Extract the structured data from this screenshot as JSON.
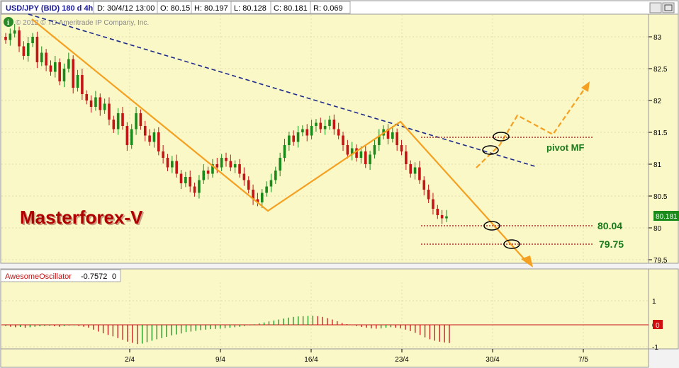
{
  "header": {
    "symbol": "USD/JPY (BID) 180 d 4h",
    "date": "D: 30/4/12 13:00",
    "open": "O: 80.15",
    "high": "H: 80.197",
    "low": "L: 80.128",
    "close": "C: 80.181",
    "range": "R: 0.069"
  },
  "copyright": "© 2012 © TD Ameritrade IP Company, Inc.",
  "brand_label": "Masterforex-V",
  "current_price_badge": "80.181",
  "oscillator": {
    "name": "AwesomeOscillator",
    "value": "-0.7572",
    "zero": "0",
    "zero_badge": "0",
    "yticks": [
      "1",
      "0",
      "-1"
    ]
  },
  "levels": [
    {
      "label": "pivot MF",
      "price": 81.45
    },
    {
      "label": "80.04",
      "price": 80.04
    },
    {
      "label": "79.75",
      "price": 79.75
    }
  ],
  "colors": {
    "bg": "#fbf8c8",
    "up": "#1a8a1a",
    "down": "#c41414",
    "trend": "#f5a020",
    "dashed_trend": "#1c2a8a",
    "level": "#b03030",
    "label_green": "#1a7a1a",
    "brand_red": "#b00000"
  },
  "chart_data": {
    "type": "candlestick",
    "symbol": "USD/JPY",
    "interval": "4h",
    "x_ticks": [
      "2/4",
      "9/4",
      "16/4",
      "23/4",
      "30/4",
      "7/5"
    ],
    "y_ticks": [
      "83",
      "82.5",
      "82",
      "81.5",
      "81",
      "80.5",
      "80",
      "79.5"
    ],
    "ylim": [
      79.5,
      83.1
    ],
    "close_series": [
      82.95,
      83.05,
      83.1,
      82.85,
      82.7,
      82.9,
      83.0,
      82.6,
      82.75,
      82.55,
      82.45,
      82.6,
      82.3,
      82.5,
      82.65,
      82.2,
      82.4,
      82.1,
      82.0,
      81.9,
      82.05,
      81.85,
      81.95,
      81.7,
      81.55,
      81.8,
      81.6,
      81.3,
      81.55,
      81.8,
      81.6,
      81.45,
      81.35,
      81.5,
      81.2,
      81.1,
      80.95,
      81.05,
      80.85,
      80.7,
      80.8,
      80.65,
      80.55,
      80.75,
      80.9,
      80.85,
      81.0,
      80.95,
      81.1,
      81.05,
      80.95,
      81.0,
      80.85,
      80.75,
      80.6,
      80.45,
      80.4,
      80.55,
      80.65,
      80.75,
      80.9,
      81.1,
      81.3,
      81.45,
      81.35,
      81.5,
      81.55,
      81.45,
      81.6,
      81.65,
      81.55,
      81.6,
      81.7,
      81.55,
      81.45,
      81.3,
      81.15,
      81.25,
      81.1,
      81.2,
      81.0,
      81.15,
      81.3,
      81.45,
      81.55,
      81.4,
      81.5,
      81.3,
      81.2,
      81.0,
      80.85,
      80.95,
      80.75,
      80.6,
      80.45,
      80.3,
      80.2,
      80.15,
      80.181
    ],
    "awesome_oscillator": [
      -0.05,
      -0.08,
      -0.1,
      -0.09,
      -0.12,
      -0.1,
      -0.08,
      -0.06,
      -0.05,
      -0.04,
      -0.06,
      -0.08,
      -0.05,
      -0.03,
      -0.02,
      -0.05,
      -0.08,
      -0.12,
      -0.2,
      -0.28,
      -0.35,
      -0.42,
      -0.48,
      -0.55,
      -0.62,
      -0.7,
      -0.75,
      -0.8,
      -0.78,
      -0.72,
      -0.66,
      -0.6,
      -0.55,
      -0.5,
      -0.44,
      -0.4,
      -0.36,
      -0.3,
      -0.28,
      -0.25,
      -0.22,
      -0.2,
      -0.18,
      -0.17,
      -0.16,
      -0.14,
      -0.12,
      -0.1,
      -0.08,
      -0.05,
      -0.02,
      0.02,
      0.06,
      0.1,
      0.14,
      0.18,
      0.22,
      0.26,
      0.3,
      0.33,
      0.35,
      0.36,
      0.37,
      0.38,
      0.36,
      0.33,
      0.28,
      0.22,
      0.15,
      0.08,
      0.03,
      -0.01,
      -0.05,
      -0.09,
      -0.12,
      -0.15,
      -0.16,
      -0.15,
      -0.12,
      -0.1,
      -0.12,
      -0.15,
      -0.2,
      -0.26,
      -0.33,
      -0.42,
      -0.52,
      -0.6,
      -0.66,
      -0.7,
      -0.73,
      -0.7572
    ]
  }
}
